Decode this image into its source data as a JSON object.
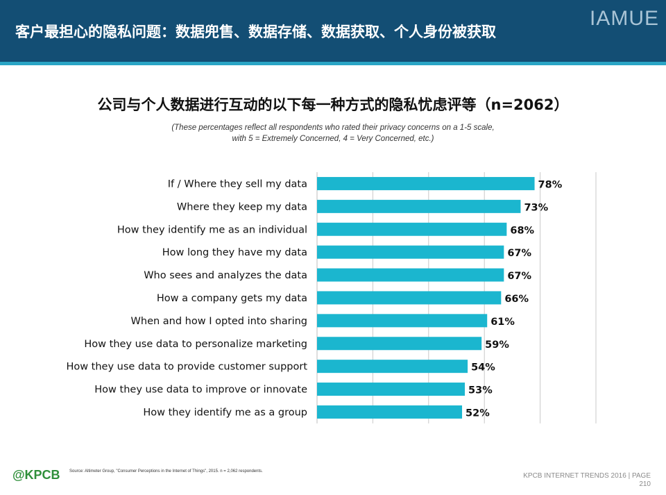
{
  "header": {
    "title": "客户最担心的隐私问题：数据兜售、数据存储、数据获取、个人身份被获取",
    "brand": "IAMUE"
  },
  "chart_data": {
    "type": "bar",
    "orientation": "horizontal",
    "title": "公司与个人数据进行互动的以下每一种方式的隐私忧虑评等（n=2062）",
    "subtitle_lines": [
      "(These percentages reflect all respondents who rated their privacy concerns on a 1-5 scale,",
      "with 5 = Extremely Concerned, 4 = Very Concerned, etc.)"
    ],
    "categories": [
      "If / Where they sell my data",
      "Where they keep my data",
      "How they identify me as an individual",
      "How long they have my data",
      "Who sees and analyzes the data",
      "How a company gets my data",
      "When and how I opted into sharing",
      "How they use data to personalize marketing",
      "How they use data to provide customer support",
      "How they use data to improve or innovate",
      "How they identify me as a group"
    ],
    "values": [
      78,
      73,
      68,
      67,
      67,
      66,
      61,
      59,
      54,
      53,
      52
    ],
    "value_labels": [
      "78%",
      "73%",
      "68%",
      "67%",
      "67%",
      "66%",
      "61%",
      "59%",
      "54%",
      "53%",
      "52%"
    ],
    "xlim": [
      0,
      100
    ],
    "grid": "vertical",
    "color": "#1bb6cf"
  },
  "footer": {
    "logo": "@KPCB",
    "source": "Source: Altimeter Group, \"Consumer Perceptions in the Internet of Things\", 2015. n = 2,062 respondents.",
    "report": "KPCB INTERNET TRENDS 2016  |  PAGE",
    "page": "210"
  }
}
